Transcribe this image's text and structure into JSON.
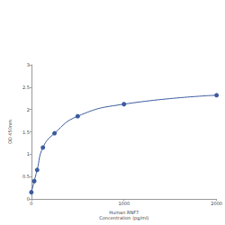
{
  "chart_data": {
    "type": "line",
    "x_label": "Human RNF7\nConcentration (pg/ml)",
    "y_label": "OD 450nm",
    "x": [
      0,
      31.25,
      62.5,
      125,
      250,
      500,
      1000,
      2000
    ],
    "values": [
      0.15,
      0.4,
      0.65,
      1.15,
      1.47,
      1.85,
      2.12,
      2.32
    ],
    "color": "#3b5ba0",
    "marker": "circle",
    "xlim": [
      0,
      2000
    ],
    "xticks": [
      0,
      1000,
      2000
    ],
    "ylim": [
      0,
      3
    ],
    "yticks": [
      0,
      0.5,
      1,
      1.5,
      2,
      2.5,
      3
    ],
    "grid": false
  }
}
